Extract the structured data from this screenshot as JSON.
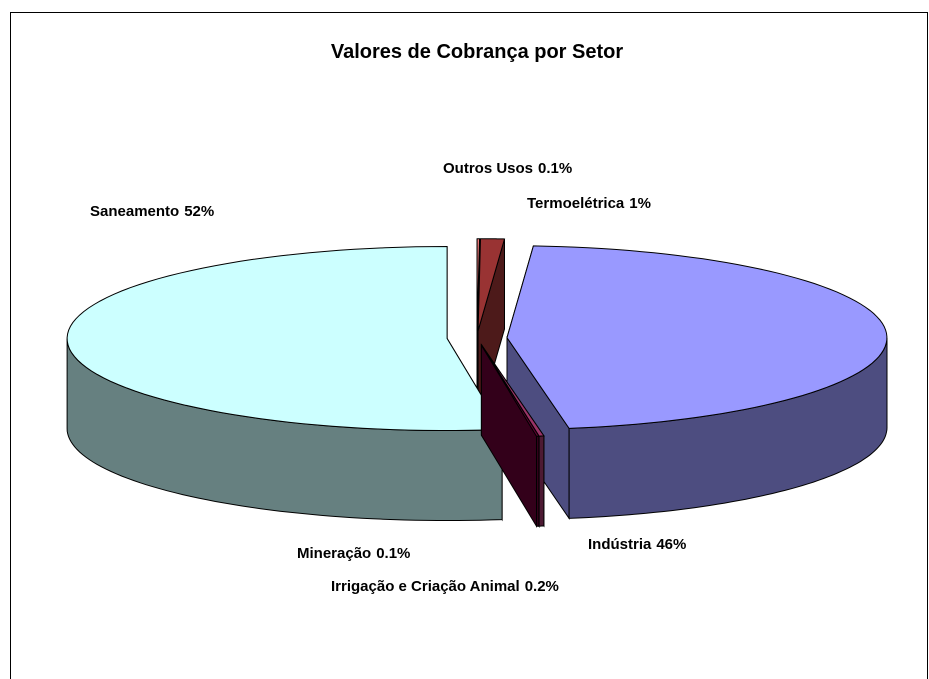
{
  "chart_data": {
    "type": "pie3d",
    "title": "Valores de Cobrança por Setor",
    "categories": [
      "Outros Usos",
      "Termoelétrica",
      "Indústria",
      "Irrigação e Criação Animal",
      "Mineração",
      "Saneamento"
    ],
    "values": [
      0.1,
      1,
      46,
      0.2,
      0.1,
      52
    ],
    "value_labels": [
      "0.1%",
      "1%",
      "46%",
      "0.2%",
      "0.1%",
      "52%"
    ],
    "colors": [
      "#ff8080",
      "#993333",
      "#9999ff",
      "#993366",
      "#660033",
      "#ccffff"
    ]
  }
}
